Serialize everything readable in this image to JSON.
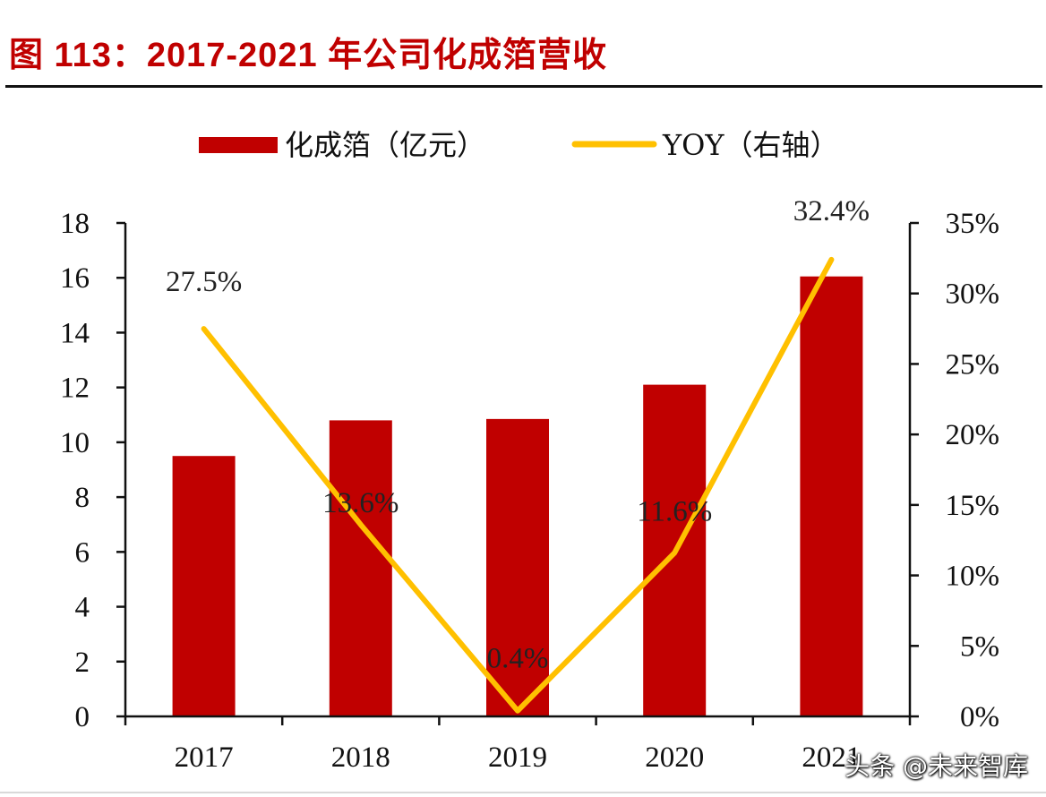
{
  "colors": {
    "title": "#c00000",
    "bar": "#c00000",
    "line": "#ffc000",
    "axis": "#111111"
  },
  "title": "图 113：2017-2021 年公司化成箔营收",
  "watermark": "头条 @未来智库",
  "chart_data": {
    "type": "bar",
    "title": "图 113：2017-2021 年公司化成箔营收",
    "categories": [
      "2017",
      "2018",
      "2019",
      "2020",
      "2021"
    ],
    "series": [
      {
        "name": "化成箔（亿元）",
        "type": "bar",
        "axis": "left",
        "values": [
          9.5,
          10.8,
          10.85,
          12.1,
          16.05
        ]
      },
      {
        "name": "YOY（右轴）",
        "type": "line",
        "axis": "right",
        "values": [
          27.5,
          13.6,
          0.4,
          11.6,
          32.4
        ],
        "labels": [
          "27.5%",
          "13.6%",
          "0.4%",
          "11.6%",
          "32.4%"
        ]
      }
    ],
    "y_left": {
      "min": 0,
      "max": 18,
      "ticks": [
        "0",
        "2",
        "4",
        "6",
        "8",
        "10",
        "12",
        "14",
        "16",
        "18"
      ]
    },
    "y_right": {
      "min": 0,
      "max": 35,
      "ticks": [
        "0%",
        "5%",
        "10%",
        "15%",
        "20%",
        "25%",
        "30%",
        "35%"
      ]
    },
    "legend_position": "top",
    "grid": false
  }
}
